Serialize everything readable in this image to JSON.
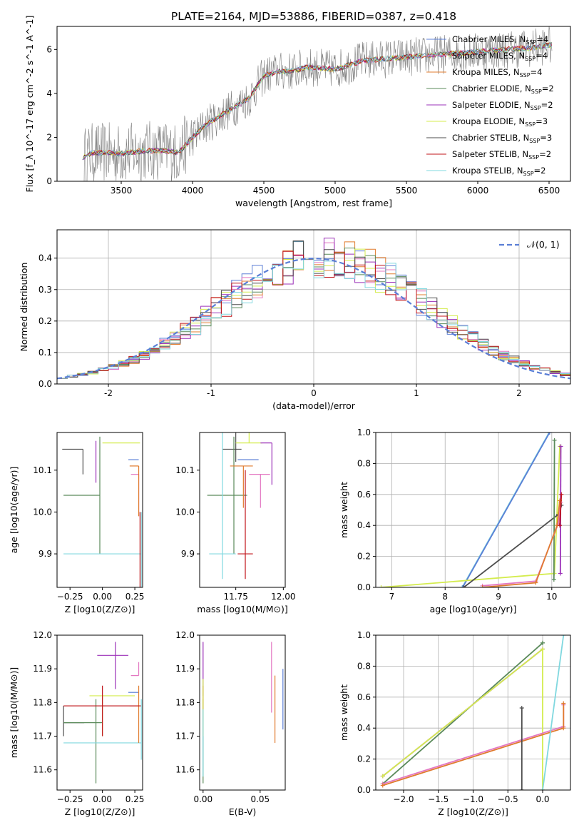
{
  "figure": {
    "title": "PLATE=2164, MJD=53886, FIBERID=0387, z=0.418"
  },
  "colors": {
    "Chabrier MILES": "#5b7fd6",
    "Salpeter MILES": "#e377c2",
    "Kroupa MILES": "#e07b2e",
    "Chabrier ELODIE": "#5a8a5a",
    "Salpeter ELODIE": "#9b30b8",
    "Kroupa ELODIE": "#d4ec4e",
    "Chabrier STELIB": "#4d4d4d",
    "Salpeter STELIB": "#c0141a",
    "Kroupa STELIB": "#80d8df",
    "data": "#808080",
    "normal": "#5b7fd6"
  },
  "chart_data": [
    {
      "id": "spectrum",
      "type": "line",
      "xlabel": "wavelength [Angstrom, rest frame]",
      "ylabel": "Flux [f_λ 10^-17 erg cm^-2 s^-1 A^-1]",
      "xlim": [
        3050,
        6650
      ],
      "ylim": [
        0,
        7.05
      ],
      "xticks": [
        3500,
        4000,
        4500,
        5000,
        5500,
        6000,
        6500
      ],
      "yticks": [
        0,
        2,
        4,
        6
      ],
      "grid": false,
      "legend_position": "top-right",
      "legend": [
        {
          "name": "Chabrier MILES",
          "sub": "SSP",
          "n": "4"
        },
        {
          "name": "Salpeter MILES",
          "sub": "SSP",
          "n": "4"
        },
        {
          "name": "Kroupa MILES",
          "sub": "SSP",
          "n": "4"
        },
        {
          "name": "Chabrier ELODIE",
          "sub": "SSP",
          "n": "2"
        },
        {
          "name": "Salpeter ELODIE",
          "sub": "SSP",
          "n": "2"
        },
        {
          "name": "Kroupa ELODIE",
          "sub": "SSP",
          "n": "3"
        },
        {
          "name": "Chabrier STELIB",
          "sub": "SSP",
          "n": "3"
        },
        {
          "name": "Salpeter STELIB",
          "sub": "SSP",
          "n": "2"
        },
        {
          "name": "Kroupa STELIB",
          "sub": "SSP",
          "n": "2"
        }
      ],
      "model_continuum": {
        "x": [
          3230,
          3300,
          3400,
          3500,
          3600,
          3700,
          3800,
          3900,
          4000,
          4100,
          4200,
          4300,
          4400,
          4500,
          4600,
          4700,
          4800,
          5000,
          5200,
          5400,
          5600,
          5800,
          6000,
          6200,
          6400,
          6500
        ],
        "y": [
          1.1,
          1.3,
          1.3,
          1.25,
          1.35,
          1.4,
          1.4,
          1.3,
          2.0,
          2.6,
          3.0,
          3.4,
          3.8,
          4.8,
          5.0,
          5.0,
          5.2,
          5.1,
          5.5,
          5.6,
          5.7,
          5.8,
          5.9,
          6.0,
          6.1,
          6.2
        ]
      }
    },
    {
      "id": "residuals",
      "type": "histogram",
      "xlabel": "(data-model)/error",
      "ylabel": "Normed distribution",
      "xlim": [
        -2.5,
        2.5
      ],
      "ylim": [
        0,
        0.49
      ],
      "xticks": [
        -2,
        -1,
        0,
        1,
        2
      ],
      "yticks": [
        0.0,
        0.1,
        0.2,
        0.3,
        0.4
      ],
      "grid": true,
      "legend_position": "top-right",
      "legend": [
        {
          "name": "𝒩(0, 1)"
        }
      ],
      "bin_width": 0.1
    },
    {
      "id": "age-vs-Z",
      "type": "errorbar",
      "xlabel": "Z [log10(Z/Z⊙)]",
      "ylabel": "age [log10(age/yr)]",
      "xlim": [
        -0.35,
        0.31
      ],
      "ylim": [
        9.82,
        10.19
      ],
      "xticks": [
        -0.25,
        0.0,
        0.25
      ],
      "yticks": [
        9.9,
        10.0,
        10.1
      ],
      "points": [
        {
          "model": "Chabrier STELIB",
          "x": -0.15,
          "y": 10.15,
          "xerr": [
            0.16,
            0.0
          ],
          "yerr": [
            0.06,
            0.0
          ]
        },
        {
          "model": "Chabrier ELODIE",
          "x": -0.02,
          "y": 10.04,
          "xerr": [
            0.28,
            0.0
          ],
          "yerr": [
            0.14,
            0.14
          ]
        },
        {
          "model": "Kroupa STELIB",
          "x": 0.0,
          "y": 9.9,
          "xerr": [
            0.3,
            0.3
          ],
          "yerr": [
            0.0,
            0.0
          ]
        },
        {
          "model": "Kroupa ELODIE",
          "x": 0.1,
          "y": 10.165,
          "xerr": [
            0.1,
            0.19
          ],
          "yerr": [
            0.0,
            0.0
          ]
        },
        {
          "model": "Salpeter ELODIE",
          "x": -0.05,
          "y": 10.17,
          "xerr": [
            0.0,
            0.0
          ],
          "yerr": [
            0.1,
            0.0
          ]
        },
        {
          "model": "Chabrier MILES",
          "x": 0.28,
          "y": 10.125,
          "xerr": [
            0.08,
            0.0
          ],
          "yerr": [
            0.0,
            0.0
          ]
        },
        {
          "model": "Salpeter MILES",
          "x": 0.28,
          "y": 10.09,
          "xerr": [
            0.06,
            0.0
          ],
          "yerr": [
            0.1,
            0.0
          ]
        },
        {
          "model": "Kroupa MILES",
          "x": 0.28,
          "y": 10.11,
          "xerr": [
            0.07,
            0.0
          ],
          "yerr": [
            0.12,
            0.0
          ]
        },
        {
          "model": "Salpeter STELIB",
          "x": 0.29,
          "y": 10.0,
          "xerr": [
            0.0,
            0.0
          ],
          "yerr": [
            0.18,
            0.0
          ]
        },
        {
          "model": "Kroupa STELIB",
          "x": 0.3,
          "y": 10.0,
          "xerr": [
            0.0,
            0.0
          ],
          "yerr": [
            0.18,
            0.0
          ]
        }
      ]
    },
    {
      "id": "age-vs-mass",
      "type": "errorbar",
      "xlabel": "mass [log10(M/M⊙)]",
      "ylabel": "",
      "xlim": [
        11.56,
        12.01
      ],
      "ylim": [
        9.82,
        10.19
      ],
      "xticks": [
        11.75,
        12.0
      ],
      "yticks": [
        9.9,
        10.0,
        10.1
      ],
      "points": [
        {
          "model": "Chabrier STELIB",
          "x": 11.75,
          "y": 10.15,
          "xerr": [
            0.07,
            0.03
          ],
          "yerr": [
            0.03,
            0.04
          ]
        },
        {
          "model": "Chabrier ELODIE",
          "x": 11.74,
          "y": 10.04,
          "xerr": [
            0.14,
            0.07
          ],
          "yerr": [
            0.14,
            0.14
          ]
        },
        {
          "model": "Kroupa STELIB",
          "x": 11.68,
          "y": 9.9,
          "xerr": [
            0.07,
            0.07
          ],
          "yerr": [
            0.06,
            0.3
          ]
        },
        {
          "model": "Kroupa ELODIE",
          "x": 11.82,
          "y": 10.165,
          "xerr": [
            0.07,
            0.07
          ],
          "yerr": [
            0.0,
            0.1
          ]
        },
        {
          "model": "Salpeter ELODIE",
          "x": 11.94,
          "y": 10.165,
          "xerr": [
            0.06,
            0.0
          ],
          "yerr": [
            0.1,
            0.0
          ]
        },
        {
          "model": "Chabrier MILES",
          "x": 11.83,
          "y": 10.125,
          "xerr": [
            0.07,
            0.04
          ],
          "yerr": [
            0.0,
            0.0
          ]
        },
        {
          "model": "Salpeter MILES",
          "x": 11.88,
          "y": 10.09,
          "xerr": [
            0.06,
            0.05
          ],
          "yerr": [
            0.08,
            0.0
          ]
        },
        {
          "model": "Kroupa MILES",
          "x": 11.79,
          "y": 10.11,
          "xerr": [
            0.07,
            0.05
          ],
          "yerr": [
            0.1,
            0.0
          ]
        },
        {
          "model": "Salpeter STELIB",
          "x": 11.8,
          "y": 9.9,
          "xerr": [
            0.04,
            0.04
          ],
          "yerr": [
            0.06,
            0.2
          ]
        }
      ]
    },
    {
      "id": "weight-vs-age",
      "type": "line",
      "xlabel": "age [log10(age/yr)]",
      "ylabel": "mass weight",
      "xlim": [
        6.7,
        10.35
      ],
      "ylim": [
        0,
        1.0
      ],
      "xticks": [
        7,
        8,
        9,
        10
      ],
      "yticks": [
        0.0,
        0.2,
        0.4,
        0.6,
        0.8,
        1.0
      ],
      "grid": true,
      "series": [
        {
          "model": "Kroupa STELIB",
          "x": [
            8.32,
            9.95
          ],
          "y": [
            0.0,
            1.0
          ]
        },
        {
          "model": "Chabrier MILES",
          "x": [
            8.33,
            9.96
          ],
          "y": [
            0.0,
            1.0
          ]
        },
        {
          "model": "Kroupa ELODIE",
          "x": [
            6.8,
            10.05,
            10.15
          ],
          "y": [
            0.0,
            0.09,
            0.91
          ]
        },
        {
          "model": "Chabrier STELIB",
          "x": [
            8.35,
            10.12,
            10.18
          ],
          "y": [
            0.0,
            0.47,
            0.53
          ]
        },
        {
          "model": "Chabrier ELODIE",
          "x": [
            10.04,
            10.05
          ],
          "y": [
            0.05,
            0.95
          ]
        },
        {
          "model": "Salpeter ELODIE",
          "x": [
            10.16,
            10.17
          ],
          "y": [
            0.09,
            0.91
          ]
        },
        {
          "model": "Salpeter MILES",
          "x": [
            8.7,
            9.7,
            10.12,
            10.17
          ],
          "y": [
            0.01,
            0.04,
            0.41,
            0.55
          ]
        },
        {
          "model": "Kroupa MILES",
          "x": [
            8.7,
            9.7,
            10.1,
            10.15
          ],
          "y": [
            0.0,
            0.03,
            0.4,
            0.56
          ]
        },
        {
          "model": "Salpeter STELIB",
          "x": [
            10.15,
            10.18
          ],
          "y": [
            0.4,
            0.6
          ]
        }
      ]
    },
    {
      "id": "mass-vs-Z",
      "type": "errorbar",
      "xlabel": "Z [log10(Z/Z⊙)]",
      "ylabel": "mass [log10(M/M⊙)]",
      "xlim": [
        -0.35,
        0.31
      ],
      "ylim": [
        11.54,
        12.0
      ],
      "xticks": [
        -0.25,
        0.0,
        0.25
      ],
      "yticks": [
        11.6,
        11.7,
        11.8,
        11.9,
        12.0
      ],
      "points": [
        {
          "model": "Chabrier STELIB",
          "x": -0.3,
          "y": 11.74,
          "xerr": [
            0.0,
            0.16
          ],
          "yerr": [
            0.04,
            0.05
          ]
        },
        {
          "model": "Chabrier ELODIE",
          "x": -0.05,
          "y": 11.74,
          "xerr": [
            0.25,
            0.05
          ],
          "yerr": [
            0.18,
            0.07
          ]
        },
        {
          "model": "Kroupa STELIB",
          "x": 0.0,
          "y": 11.68,
          "xerr": [
            0.3,
            0.3
          ],
          "yerr": [
            0.0,
            0.0
          ]
        },
        {
          "model": "Kroupa ELODIE",
          "x": 0.0,
          "y": 11.82,
          "xerr": [
            0.1,
            0.25
          ],
          "yerr": [
            0.12,
            0.0
          ]
        },
        {
          "model": "Salpeter ELODIE",
          "x": 0.1,
          "y": 11.94,
          "xerr": [
            0.14,
            0.1
          ],
          "yerr": [
            0.1,
            0.04
          ]
        },
        {
          "model": "Chabrier MILES",
          "x": 0.28,
          "y": 11.83,
          "xerr": [
            0.08,
            0.0
          ],
          "yerr": [
            0.0,
            0.0
          ]
        },
        {
          "model": "Salpeter MILES",
          "x": 0.28,
          "y": 11.88,
          "xerr": [
            0.06,
            0.0
          ],
          "yerr": [
            0.0,
            0.04
          ]
        },
        {
          "model": "Kroupa MILES",
          "x": 0.28,
          "y": 11.79,
          "xerr": [
            0.07,
            0.0
          ],
          "yerr": [
            0.11,
            0.06
          ]
        },
        {
          "model": "Salpeter STELIB",
          "x": 0.0,
          "y": 11.79,
          "xerr": [
            0.3,
            0.3
          ],
          "yerr": [
            0.09,
            0.06
          ]
        },
        {
          "model": "Kroupa STELIB",
          "x": 0.3,
          "y": 11.75,
          "xerr": [
            0.0,
            0.0
          ],
          "yerr": [
            0.12,
            0.06
          ]
        }
      ]
    },
    {
      "id": "mass-vs-ebv",
      "type": "errorbar",
      "xlabel": "E(B-V)",
      "ylabel": "",
      "xlim": [
        -0.003,
        0.072
      ],
      "ylim": [
        11.54,
        12.0
      ],
      "xticks": [
        0.0,
        0.05
      ],
      "yticks": [
        11.6,
        11.7,
        11.8,
        11.9,
        12.0
      ],
      "points": [
        {
          "model": "Salpeter ELODIE",
          "x": 0.0,
          "y": 11.94,
          "xerr": [
            0.0,
            0.0
          ],
          "yerr": [
            0.12,
            0.04
          ]
        },
        {
          "model": "Chabrier ELODIE",
          "x": 0.0,
          "y": 11.74,
          "xerr": [
            0.0,
            0.0
          ],
          "yerr": [
            0.18,
            0.07
          ]
        },
        {
          "model": "Salpeter STELIB",
          "x": 0.0,
          "y": 11.79,
          "xerr": [
            0.0,
            0.0
          ],
          "yerr": [
            0.09,
            0.06
          ]
        },
        {
          "model": "Kroupa ELODIE",
          "x": 0.0,
          "y": 11.82,
          "xerr": [
            0.0,
            0.0
          ],
          "yerr": [
            0.12,
            0.05
          ]
        },
        {
          "model": "Kroupa STELIB",
          "x": 0.0,
          "y": 11.68,
          "xerr": [
            0.0,
            0.0
          ],
          "yerr": [
            0.1,
            0.1
          ]
        },
        {
          "model": "Salpeter MILES",
          "x": 0.06,
          "y": 11.87,
          "xerr": [
            0.0,
            0.0
          ],
          "yerr": [
            0.1,
            0.11
          ]
        },
        {
          "model": "Kroupa MILES",
          "x": 0.063,
          "y": 11.78,
          "xerr": [
            0.0,
            0.0
          ],
          "yerr": [
            0.1,
            0.1
          ]
        },
        {
          "model": "Chabrier MILES",
          "x": 0.07,
          "y": 11.81,
          "xerr": [
            0.0,
            0.0
          ],
          "yerr": [
            0.09,
            0.09
          ]
        }
      ]
    },
    {
      "id": "weight-vs-Z",
      "type": "line",
      "xlabel": "Z [log10(Z/Z⊙)]",
      "ylabel": "mass weight",
      "xlim": [
        -2.4,
        0.4
      ],
      "ylim": [
        0,
        1.0
      ],
      "xticks": [
        -2.0,
        -1.5,
        -1.0,
        -0.5,
        0.0
      ],
      "yticks": [
        0.0,
        0.2,
        0.4,
        0.6,
        0.8,
        1.0
      ],
      "grid": true,
      "series": [
        {
          "model": "Chabrier ELODIE",
          "x": [
            -2.3,
            0.0,
            0.0
          ],
          "y": [
            0.04,
            0.95,
            0.95
          ]
        },
        {
          "model": "Salpeter ELODIE",
          "x": [
            -2.3,
            0.0
          ],
          "y": [
            0.09,
            0.91
          ]
        },
        {
          "model": "Kroupa ELODIE",
          "x": [
            -2.3,
            0.0,
            0.0
          ],
          "y": [
            0.09,
            0.91,
            0.0
          ]
        },
        {
          "model": "Salpeter MILES",
          "x": [
            -2.3,
            0.3,
            0.3
          ],
          "y": [
            0.04,
            0.41,
            0.55
          ]
        },
        {
          "model": "Kroupa MILES",
          "x": [
            -2.3,
            0.3,
            0.3
          ],
          "y": [
            0.03,
            0.4,
            0.56
          ]
        },
        {
          "model": "Kroupa STELIB",
          "x": [
            0.0,
            0.3
          ],
          "y": [
            0.0,
            1.0
          ]
        },
        {
          "model": "Chabrier STELIB",
          "x": [
            -0.3,
            -0.3
          ],
          "y": [
            0.0,
            0.53
          ]
        }
      ]
    }
  ]
}
